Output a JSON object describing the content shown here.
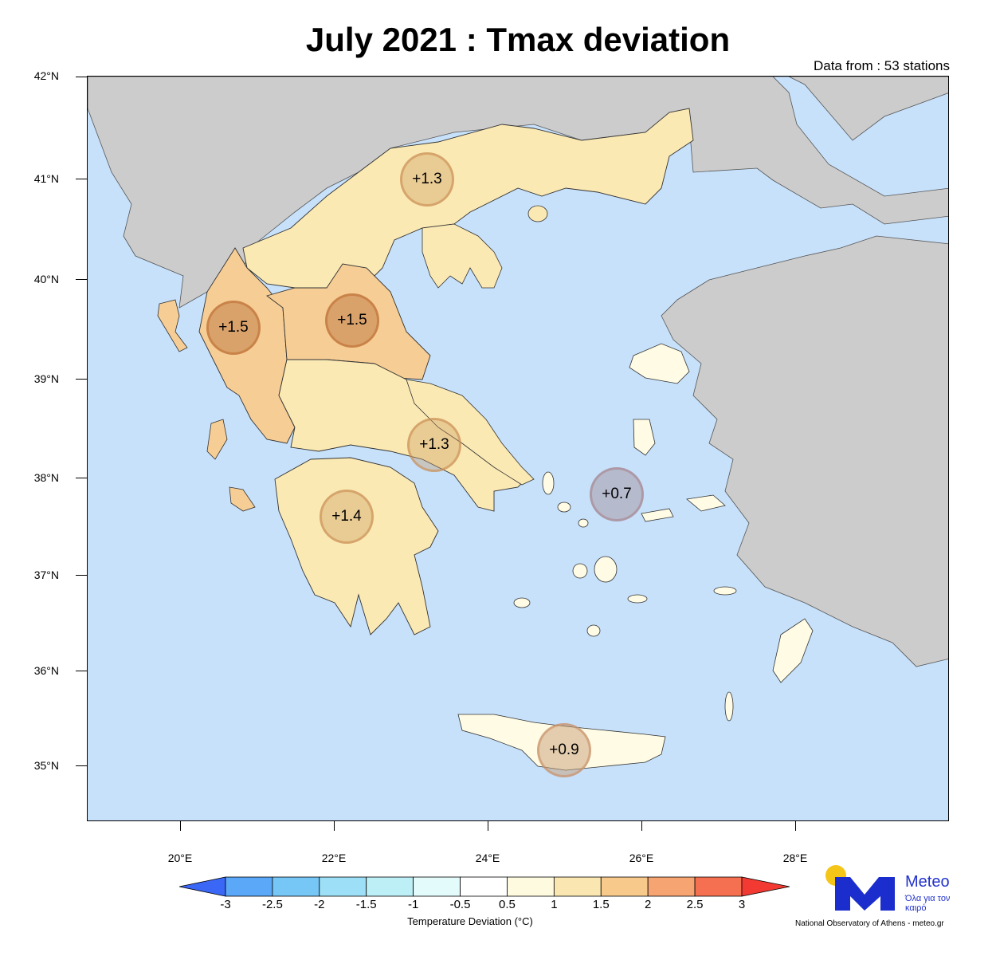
{
  "title": "July 2021 : Tmax deviation",
  "subtitle": "Data from : 53 stations",
  "lat_labels": [
    "42°N",
    "41°N",
    "40°N",
    "39°N",
    "38°N",
    "37°N",
    "36°N",
    "35°N"
  ],
  "lon_labels": [
    "20°E",
    "22°E",
    "24°E",
    "26°E",
    "28°E"
  ],
  "stations": [
    {
      "value": "+1.3",
      "region": "Central Macedonia"
    },
    {
      "value": "+1.5",
      "region": "Epirus"
    },
    {
      "value": "+1.5",
      "region": "Thessaly"
    },
    {
      "value": "+1.3",
      "region": "Central Greece / Attica"
    },
    {
      "value": "+1.4",
      "region": "Peloponnese"
    },
    {
      "value": "+0.7",
      "region": "Aegean islands"
    },
    {
      "value": "+0.9",
      "region": "Crete"
    }
  ],
  "colorbar": {
    "title": "Temperature Deviation (°C)",
    "labels": [
      "-3",
      "-2.5",
      "-2",
      "-1.5",
      "-1",
      "-0.5",
      "0.5",
      "1",
      "1.5",
      "2",
      "2.5",
      "3"
    ],
    "colors": [
      "#5aa8f7",
      "#76c6f6",
      "#9ddff6",
      "#bdf0f6",
      "#e4fbfb",
      "#ffffff",
      "#fefae0",
      "#f9e6b0",
      "#f7c98b",
      "#f7a473",
      "#f57050"
    ],
    "low_color": "#3a67f5",
    "high_color": "#f23a32"
  },
  "logo": {
    "name": "Meteo",
    "tagline": "Όλα για τον καιρό"
  },
  "credit": "National Observatory of Athens - meteo.gr",
  "colors": {
    "sea": "#c7e1fb",
    "land_other": "#cccccc",
    "deviation_1_1_5": "#fbe9b4",
    "deviation_1_5_2": "#f6cd95",
    "deviation_0_5_1": "#fffbe4"
  }
}
